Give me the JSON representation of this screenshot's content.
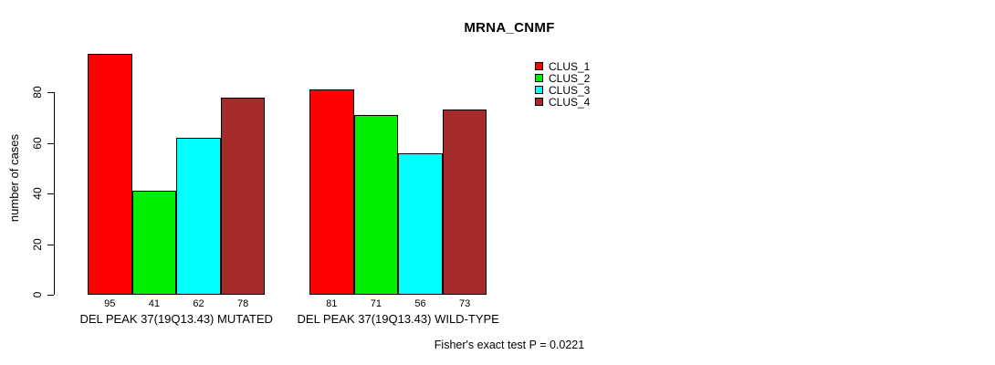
{
  "title": "MRNA_CNMF",
  "footer": "Fisher's exact test P = 0.0221",
  "chart_data": {
    "type": "bar",
    "title": "MRNA_CNMF",
    "xlabel": "",
    "ylabel": "number of cases",
    "ylim": [
      0,
      95
    ],
    "yticks": [
      0,
      20,
      40,
      60,
      80
    ],
    "grid": false,
    "legend_position": "top-right",
    "series": [
      {
        "name": "CLUS_1",
        "color": "#ff0000",
        "values": [
          95,
          81
        ]
      },
      {
        "name": "CLUS_2",
        "color": "#00ee00",
        "values": [
          41,
          71
        ]
      },
      {
        "name": "CLUS_3",
        "color": "#00ffff",
        "values": [
          62,
          56
        ]
      },
      {
        "name": "CLUS_4",
        "color": "#a52a2a",
        "values": [
          78,
          73
        ]
      }
    ],
    "categories": [
      "DEL PEAK 37(19Q13.43) MUTATED",
      "DEL PEAK 37(19Q13.43) WILD-TYPE"
    ],
    "bar_labels": {
      "DEL PEAK 37(19Q13.43) MUTATED": [
        95,
        41,
        62,
        78
      ],
      "DEL PEAK 37(19Q13.43) WILD-TYPE": [
        81,
        71,
        56,
        73
      ]
    },
    "annotation": "Fisher's exact test P = 0.0221"
  }
}
